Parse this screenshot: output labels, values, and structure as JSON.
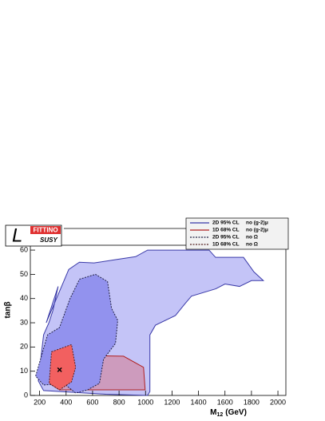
{
  "chart_data": {
    "type": "contour",
    "xlabel": {
      "main": "M",
      "sub": "12",
      "unit": "(GeV)"
    },
    "ylabel": "tanβ",
    "xlim": [
      130,
      2060
    ],
    "ylim": [
      0,
      62
    ],
    "xticks": [
      200,
      400,
      600,
      800,
      1000,
      1200,
      1400,
      1600,
      1800,
      2000
    ],
    "yticks": [
      0,
      10,
      20,
      30,
      40,
      50,
      60
    ],
    "logo": {
      "mark": "L",
      "title": "FITTINO",
      "subtitle": "SUSY"
    },
    "series": [
      {
        "name": "2D 95% CL",
        "condition": "no (g-2)μ",
        "color": "#3a3aa8",
        "fill": "#c4c4f7",
        "fill_opacity": 1,
        "dash": false,
        "x": [
          250,
          420,
          500,
          611,
          804,
          925,
          1015,
          1480,
          1529,
          1740,
          1819,
          1890,
          1800,
          1710,
          1600,
          1530,
          1347,
          1300,
          1226,
          1075,
          1033,
          1033,
          1015,
          700,
          230,
          190,
          230,
          270,
          300,
          340
        ],
        "y": [
          30,
          52,
          55,
          54.7,
          56.3,
          57.3,
          60,
          60,
          57,
          57,
          51,
          47.4,
          47.4,
          45,
          46,
          44,
          41,
          38,
          33,
          29,
          25,
          1.6,
          0,
          0.5,
          2,
          6,
          25,
          30,
          35,
          45
        ]
      },
      {
        "name": "1D 68% CL",
        "condition": "no (g-2)μ",
        "color": "#b02020",
        "fill": "#e05050",
        "fill_opacity": 0.35,
        "dash": false,
        "x": [
          272,
          411,
          453,
          834,
          985,
          997,
          743,
          472,
          350
        ],
        "y": [
          5,
          13,
          16.6,
          16.2,
          11.6,
          2.3,
          2.3,
          2.3,
          2.3
        ]
      },
      {
        "name": "2D 95% CL",
        "condition": "no Ω",
        "color": "#222244",
        "fill": "#9292ee",
        "fill_opacity": 1,
        "dash": true,
        "x": [
          170,
          260,
          350,
          430,
          502,
          622,
          713,
          743,
          790,
          773,
          683,
          652,
          562,
          472,
          381,
          230
        ],
        "y": [
          8,
          25,
          28,
          40,
          48,
          50,
          47,
          36,
          31,
          21.5,
          15,
          5,
          2.3,
          1,
          5,
          4.3
        ]
      },
      {
        "name": "1D 68% CL",
        "condition": "no Ω",
        "color": "#552222",
        "fill": "#f26060",
        "fill_opacity": 1,
        "dash": true,
        "x": [
          290,
          441,
          472,
          441,
          350,
          272
        ],
        "y": [
          18,
          21,
          11.6,
          5.6,
          2.3,
          5
        ]
      }
    ],
    "best_fit": {
      "x": 351,
      "y": 10.6
    }
  }
}
